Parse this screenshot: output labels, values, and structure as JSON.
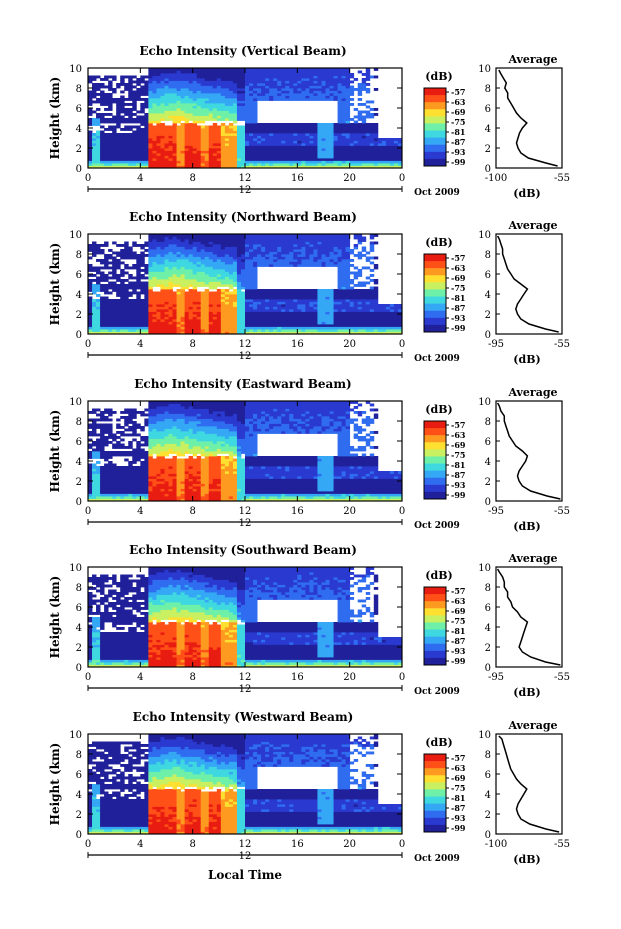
{
  "figure": {
    "date_label": "Oct 2009",
    "xlabel": "Local Time",
    "ylabel": "Height (km)",
    "colorbar_label": "(dB)",
    "avg_title": "Average",
    "avg_xlabel": "(dB)",
    "colors": {
      "scale": [
        "#20209a",
        "#2a3ad0",
        "#2f6cf0",
        "#35a8f5",
        "#3fd8e0",
        "#6ef0a8",
        "#c8f060",
        "#ffe030",
        "#ff9a20",
        "#ff5018",
        "#e81c10"
      ],
      "missing": "#ffffff",
      "axis": "#000000"
    }
  },
  "chart_data": [
    {
      "type": "heatmap",
      "title": "Echo Intensity (Vertical Beam)",
      "xlim": [
        0,
        24
      ],
      "ylim": [
        0,
        10
      ],
      "xticks": [
        "0",
        "4",
        "8",
        "12",
        "16",
        "20",
        "0"
      ],
      "yticks": [
        "0",
        "2",
        "4",
        "6",
        "8",
        "10"
      ],
      "day_marker": "12",
      "colorbar_ticks": [
        "-57",
        "-63",
        "-69",
        "-75",
        "-81",
        "-87",
        "-93",
        "-99"
      ],
      "average": {
        "xlim": [
          -100,
          -55
        ],
        "xticks": [
          "-100",
          "-55"
        ],
        "yticks": [
          "0",
          "2",
          "4",
          "6",
          "8",
          "10"
        ],
        "height_km": [
          0.2,
          0.5,
          1,
          1.5,
          2,
          2.5,
          3,
          3.5,
          4,
          4.5,
          5,
          5.5,
          6,
          6.5,
          7,
          7.5,
          8,
          8.5,
          9,
          9.5,
          9.8
        ],
        "db": [
          -58,
          -66,
          -78,
          -83,
          -85,
          -86,
          -85,
          -84,
          -82,
          -79,
          -83,
          -86,
          -88,
          -90,
          -92,
          -92,
          -94,
          -93,
          -95,
          -97,
          -98
        ]
      }
    },
    {
      "type": "heatmap",
      "title": "Echo Intensity (Northward Beam)",
      "xlim": [
        0,
        24
      ],
      "ylim": [
        0,
        10
      ],
      "xticks": [
        "0",
        "4",
        "8",
        "12",
        "16",
        "20",
        "0"
      ],
      "yticks": [
        "0",
        "2",
        "4",
        "6",
        "8",
        "10"
      ],
      "day_marker": "12",
      "colorbar_ticks": [
        "-57",
        "-63",
        "-69",
        "-75",
        "-81",
        "-87",
        "-93",
        "-99"
      ],
      "average": {
        "xlim": [
          -95,
          -55
        ],
        "xticks": [
          "-95",
          "-55"
        ],
        "yticks": [
          "0",
          "2",
          "4",
          "6",
          "8",
          "10"
        ],
        "height_km": [
          0.2,
          0.5,
          1,
          1.5,
          2,
          2.5,
          3,
          3.5,
          4,
          4.5,
          5,
          5.5,
          6,
          6.5,
          7,
          7.5,
          8,
          8.5,
          9,
          9.5,
          9.8
        ],
        "db": [
          -57,
          -65,
          -75,
          -80,
          -82,
          -83,
          -82,
          -80,
          -78,
          -76,
          -80,
          -84,
          -86,
          -88,
          -89,
          -90,
          -91,
          -91,
          -92,
          -93,
          -94
        ]
      }
    },
    {
      "type": "heatmap",
      "title": "Echo Intensity (Eastward Beam)",
      "xlim": [
        0,
        24
      ],
      "ylim": [
        0,
        10
      ],
      "xticks": [
        "0",
        "4",
        "8",
        "12",
        "16",
        "20",
        "0"
      ],
      "yticks": [
        "0",
        "2",
        "4",
        "6",
        "8",
        "10"
      ],
      "day_marker": "12",
      "colorbar_ticks": [
        "-57",
        "-63",
        "-69",
        "-75",
        "-81",
        "-87",
        "-93",
        "-99"
      ],
      "average": {
        "xlim": [
          -95,
          -55
        ],
        "xticks": [
          "-95",
          "-55"
        ],
        "yticks": [
          "0",
          "2",
          "4",
          "6",
          "8",
          "10"
        ],
        "height_km": [
          0.2,
          0.5,
          1,
          1.5,
          2,
          2.5,
          3,
          3.5,
          4,
          4.5,
          5,
          5.5,
          6,
          6.5,
          7,
          7.5,
          8,
          8.5,
          9,
          9.5,
          9.8
        ],
        "db": [
          -56,
          -64,
          -74,
          -79,
          -81,
          -82,
          -81,
          -79,
          -77,
          -76,
          -79,
          -83,
          -85,
          -87,
          -88,
          -89,
          -90,
          -90,
          -92,
          -93,
          -94
        ]
      }
    },
    {
      "type": "heatmap",
      "title": "Echo Intensity (Southward Beam)",
      "xlim": [
        0,
        24
      ],
      "ylim": [
        0,
        10
      ],
      "xticks": [
        "0",
        "4",
        "8",
        "12",
        "16",
        "20",
        "0"
      ],
      "yticks": [
        "0",
        "2",
        "4",
        "6",
        "8",
        "10"
      ],
      "day_marker": "12",
      "colorbar_ticks": [
        "-57",
        "-63",
        "-69",
        "-75",
        "-81",
        "-87",
        "-93",
        "-99"
      ],
      "average": {
        "xlim": [
          -95,
          -55
        ],
        "xticks": [
          "-95",
          "-55"
        ],
        "yticks": [
          "0",
          "2",
          "4",
          "6",
          "8",
          "10"
        ],
        "height_km": [
          0.2,
          0.5,
          1,
          1.5,
          2,
          2.5,
          3,
          3.5,
          4,
          4.5,
          5,
          5.5,
          6,
          6.5,
          7,
          7.5,
          8,
          8.5,
          9,
          9.5,
          9.8
        ],
        "db": [
          -56,
          -65,
          -74,
          -79,
          -81,
          -80,
          -79,
          -78,
          -77,
          -76,
          -80,
          -82,
          -85,
          -86,
          -88,
          -88,
          -90,
          -90,
          -91,
          -93,
          -94
        ]
      }
    },
    {
      "type": "heatmap",
      "title": "Echo Intensity (Westward Beam)",
      "xlim": [
        0,
        24
      ],
      "ylim": [
        0,
        10
      ],
      "xticks": [
        "0",
        "4",
        "8",
        "12",
        "16",
        "20",
        "0"
      ],
      "yticks": [
        "0",
        "2",
        "4",
        "6",
        "8",
        "10"
      ],
      "day_marker": "12",
      "colorbar_ticks": [
        "-57",
        "-63",
        "-69",
        "-75",
        "-81",
        "-87",
        "-93",
        "-99"
      ],
      "average": {
        "xlim": [
          -100,
          -55
        ],
        "xticks": [
          "-100",
          "-55"
        ],
        "yticks": [
          "0",
          "2",
          "4",
          "6",
          "8",
          "10"
        ],
        "height_km": [
          0.2,
          0.5,
          1,
          1.5,
          2,
          2.5,
          3,
          3.5,
          4,
          4.5,
          5,
          5.5,
          6,
          6.5,
          7,
          7.5,
          8,
          8.5,
          9,
          9.5,
          9.8
        ],
        "db": [
          -57,
          -66,
          -77,
          -83,
          -85,
          -86,
          -85,
          -83,
          -81,
          -79,
          -83,
          -86,
          -88,
          -90,
          -91,
          -92,
          -93,
          -94,
          -95,
          -96,
          -98
        ]
      }
    }
  ]
}
